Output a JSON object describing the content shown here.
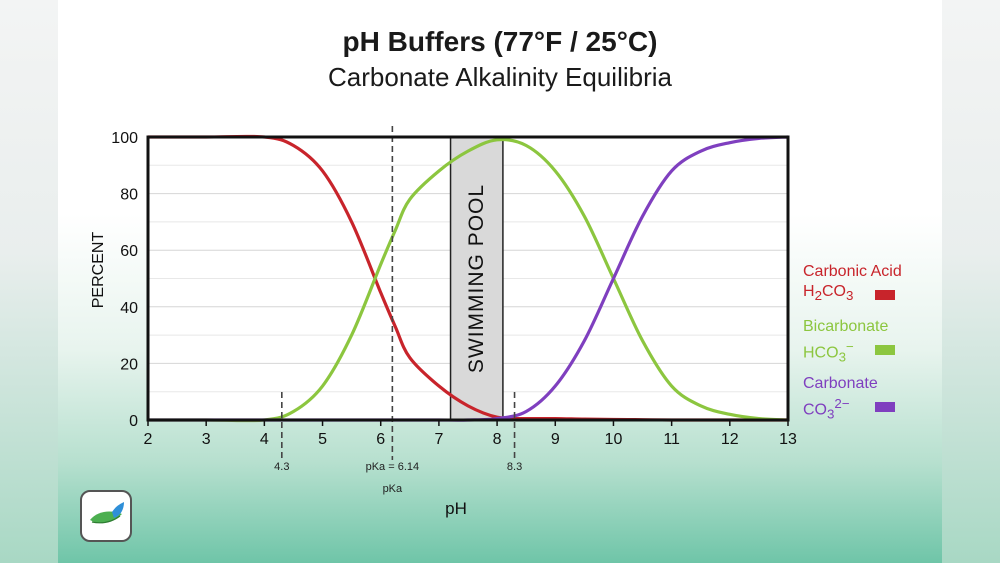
{
  "title": "pH Buffers (77°F / 25°C)",
  "subtitle": "Carbonate Alkalinity Equilibria",
  "colors": {
    "carbonic_acid": "#c8242b",
    "bicarbonate": "#8cc63f",
    "carbonate": "#7f3fbf"
  },
  "chart_data": {
    "type": "line",
    "title": "pH Buffers (77°F / 25°C)",
    "subtitle": "Carbonate Alkalinity Equilibria",
    "xlabel": "pH",
    "ylabel": "PERCENT",
    "xlim": [
      2,
      13
    ],
    "ylim": [
      0,
      100
    ],
    "x_ticks": [
      "2",
      "3",
      "4",
      "5",
      "6",
      "7",
      "8",
      "9",
      "10",
      "11",
      "12",
      "13"
    ],
    "y_ticks": [
      "0",
      "20",
      "40",
      "60",
      "80",
      "100"
    ],
    "grid": "horizontal",
    "x": [
      2,
      3,
      4,
      4.5,
      5,
      5.5,
      6,
      6.25,
      6.5,
      7,
      7.5,
      8,
      8.5,
      9,
      9.5,
      10,
      10.5,
      11,
      11.5,
      12,
      12.5,
      13
    ],
    "series": [
      {
        "name": "Carbonic Acid",
        "formula": "H2CO3",
        "color": "#c8242b",
        "values": [
          100,
          100,
          100,
          97,
          88,
          70,
          45,
          33,
          22,
          12,
          5,
          1,
          0.5,
          0.5,
          0.3,
          0.2,
          0.1,
          0,
          0,
          0,
          0,
          0
        ]
      },
      {
        "name": "Bicarbonate",
        "formula": "HCO3−",
        "color": "#8cc63f",
        "values": [
          0,
          0,
          0,
          3,
          12,
          30,
          55,
          67,
          78,
          88,
          95,
          99,
          97,
          88,
          72,
          50,
          28,
          12,
          5,
          2,
          0.5,
          0
        ]
      },
      {
        "name": "Carbonate",
        "formula": "CO3 2−",
        "color": "#7f3fbf",
        "values": [
          0,
          0,
          0,
          0,
          0,
          0,
          0,
          0,
          0,
          0,
          0,
          0.5,
          3,
          12,
          28,
          50,
          72,
          88,
          95,
          98,
          99.5,
          100
        ]
      }
    ],
    "annotations": {
      "band": {
        "x_from": 7.2,
        "x_to": 8.1,
        "label": "SWIMMING POOL"
      },
      "markers": [
        {
          "x": 4.3,
          "label": "4.3"
        },
        {
          "x": 6.2,
          "label": "pKa = 6.14",
          "sub_label": "pKa"
        },
        {
          "x": 8.3,
          "label": "8.3"
        }
      ]
    },
    "legend_position": "right"
  },
  "legend": [
    {
      "name": "Carbonic Acid",
      "formula_main": "H",
      "formula_sub1": "2",
      "formula_mid": "CO",
      "formula_sub2": "3",
      "formula_sup": "",
      "color": "#c8242b"
    },
    {
      "name": "Bicarbonate",
      "formula_main": "HCO",
      "formula_sub1": "3",
      "formula_mid": "",
      "formula_sub2": "",
      "formula_sup": "−",
      "color": "#8cc63f"
    },
    {
      "name": "Carbonate",
      "formula_main": "CO",
      "formula_sub1": "3",
      "formula_mid": "",
      "formula_sub2": "",
      "formula_sup": "2−",
      "color": "#7f3fbf"
    }
  ],
  "logo_icon": "leaf-logo-icon"
}
